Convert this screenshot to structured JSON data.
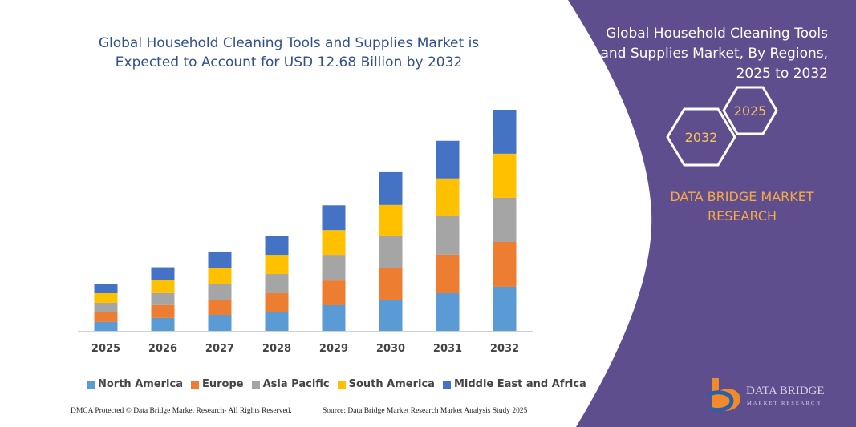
{
  "chart_data": {
    "type": "bar",
    "stacked": true,
    "title": "Global Household Cleaning Tools and Supplies Market is Expected to Account for USD 12.68 Billion by 2032",
    "categories": [
      "2025",
      "2026",
      "2027",
      "2028",
      "2029",
      "2030",
      "2031",
      "2032"
    ],
    "series": [
      {
        "name": "North America",
        "color": "#5b9bd5",
        "values": [
          0.51,
          0.74,
          0.92,
          1.1,
          1.47,
          1.79,
          2.16,
          2.53
        ]
      },
      {
        "name": "Europe",
        "color": "#ed7d31",
        "values": [
          0.55,
          0.74,
          0.87,
          1.06,
          1.42,
          1.84,
          2.21,
          2.57
        ]
      },
      {
        "name": "Asia Pacific",
        "color": "#a5a5a5",
        "values": [
          0.55,
          0.69,
          0.92,
          1.1,
          1.47,
          1.84,
          2.21,
          2.53
        ]
      },
      {
        "name": "South America",
        "color": "#ffc000",
        "values": [
          0.55,
          0.74,
          0.92,
          1.1,
          1.42,
          1.75,
          2.16,
          2.53
        ]
      },
      {
        "name": "Middle East and Africa",
        "color": "#4472c4",
        "values": [
          0.55,
          0.74,
          0.92,
          1.1,
          1.42,
          1.88,
          2.16,
          2.52
        ]
      }
    ],
    "legend": "bottom"
  },
  "panel": {
    "title": "Global Household Cleaning Tools and Supplies Market, By Regions, 2025 to 2032",
    "hex_front": "2032",
    "hex_back": "2025",
    "brand": "DATA BRIDGE MARKET RESEARCH"
  },
  "logo": {
    "name": "DATA BRIDGE",
    "tagline": "MARKET RESEARCH"
  },
  "footer": {
    "left": "DMCA Protected © Data Bridge Market Research- All Rights Reserved.",
    "right": "Source: Data Bridge Market Research Market Analysis Study 2025"
  }
}
